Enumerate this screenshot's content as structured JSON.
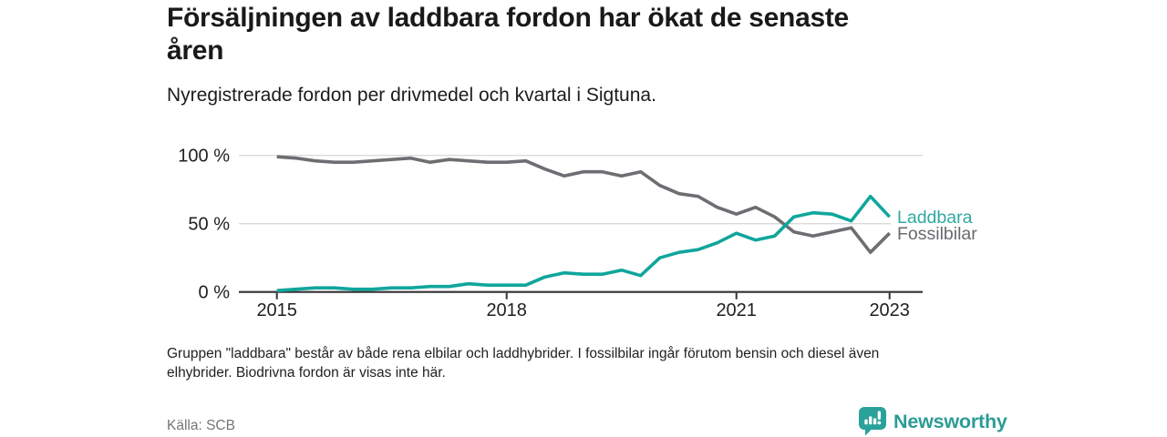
{
  "chart_data": {
    "type": "line",
    "title": "Försäljningen av laddbara fordon har ökat de senaste åren",
    "subtitle": "Nyregistrerade fordon per drivmedel och kvartal i Sigtuna.",
    "x_start_year": 2015,
    "x_interval": "quarter",
    "x_end": "2023 K1",
    "points_per_year": 4,
    "ylim": [
      0,
      100
    ],
    "grid": "horizontal-only",
    "legend_position": "end-of-line-right",
    "y_ticks": [
      {
        "label": "0 %",
        "value": 0
      },
      {
        "label": "50 %",
        "value": 50
      },
      {
        "label": "100 %",
        "value": 100
      }
    ],
    "x_ticks": [
      {
        "label": "2015",
        "year": 2015
      },
      {
        "label": "2018",
        "year": 2018
      },
      {
        "label": "2021",
        "year": 2021
      },
      {
        "label": "2023",
        "year": 2023
      }
    ],
    "series": [
      {
        "name": "Laddbara",
        "color": "#0FA69C",
        "label_color": "#2FA9A1",
        "values": [
          1,
          2,
          3,
          3,
          2,
          2,
          3,
          3,
          4,
          4,
          6,
          5,
          5,
          5,
          11,
          14,
          13,
          13,
          16,
          12,
          25,
          29,
          31,
          36,
          43,
          38,
          41,
          55,
          58,
          57,
          52,
          70,
          55
        ]
      },
      {
        "name": "Fossilbilar",
        "color": "#6D6D72",
        "label_color": "#69696E",
        "values": [
          99,
          98,
          96,
          95,
          95,
          96,
          97,
          98,
          95,
          97,
          96,
          95,
          95,
          96,
          90,
          85,
          88,
          88,
          85,
          88,
          78,
          72,
          70,
          62,
          57,
          62,
          55,
          44,
          41,
          44,
          47,
          29,
          43
        ]
      }
    ]
  },
  "header": {
    "title_lines": [
      "Försäljningen av laddbara fordon har ökat de senaste",
      "åren"
    ]
  },
  "footnote_lines": [
    "Gruppen \"laddbara\" består av både rena elbilar och laddhybrider. I fossilbilar ingår förutom bensin och diesel även",
    "elhybrider. Biodrivna fordon är visas inte här."
  ],
  "source": "Källa: SCB",
  "branding": {
    "name": "Newsworthy",
    "icon": "newsworthy-chart-bubble-icon",
    "color": "#2B9C95"
  },
  "colors": {
    "accent_teal": "#0FA69C",
    "line_gray": "#6D6D72",
    "grid": "#DADADA",
    "axis": "#323236"
  }
}
